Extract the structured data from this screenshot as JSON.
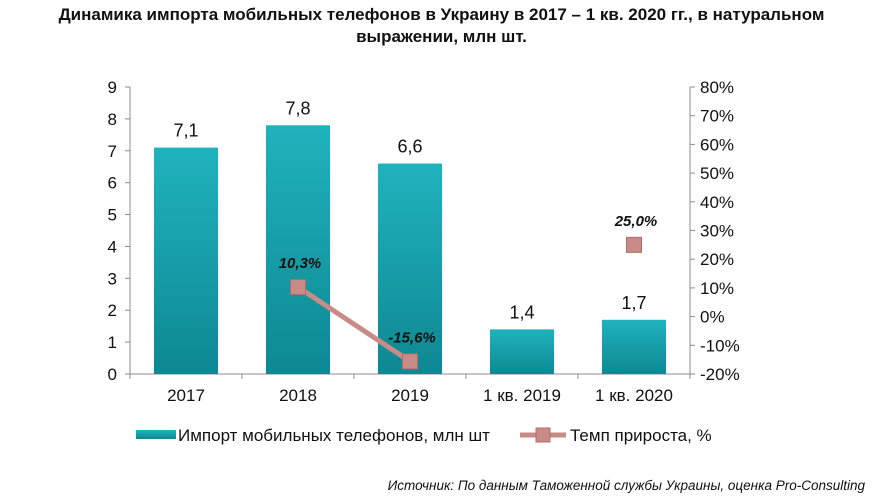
{
  "title_line1": "Динамика импорта мобильных телефонов в Украину в 2017 – 1 кв. 2020 гг., в натуральном",
  "title_line2": "выражении, млн шт.",
  "source": "Источник: По данным Таможенной службы Украины, оценка Pro-Consulting",
  "chart_data": {
    "type": "bar",
    "categories": [
      "2017",
      "2018",
      "2019",
      "1 кв. 2019",
      "1 кв. 2020"
    ],
    "series": [
      {
        "name": "Импорт мобильных телефонов, млн шт",
        "type": "bar",
        "axis": "left",
        "values": [
          7.1,
          7.8,
          6.6,
          1.4,
          1.7
        ],
        "labels": [
          "7,1",
          "7,8",
          "6,6",
          "1,4",
          "1,7"
        ],
        "color": "#17a2ad"
      },
      {
        "name": "Темп прироста, %",
        "type": "line",
        "axis": "right",
        "values": [
          null,
          10.3,
          -15.6,
          null,
          25.0
        ],
        "labels": [
          "",
          "10,3%",
          "-15,6%",
          "",
          "25,0%"
        ],
        "connected": [
          [
            1,
            2
          ]
        ],
        "color": "#c98b87"
      }
    ],
    "y_left": {
      "ylim": [
        0,
        9
      ],
      "ticks": [
        0,
        1,
        2,
        3,
        4,
        5,
        6,
        7,
        8,
        9
      ],
      "tick_labels": [
        "0",
        "1",
        "2",
        "3",
        "4",
        "5",
        "6",
        "7",
        "8",
        "9"
      ]
    },
    "y_right": {
      "ylim": [
        -20,
        80
      ],
      "ticks": [
        -20,
        -10,
        0,
        10,
        20,
        30,
        40,
        50,
        60,
        70,
        80
      ],
      "tick_labels": [
        "-20%",
        "-10%",
        "0%",
        "10%",
        "20%",
        "30%",
        "40%",
        "50%",
        "60%",
        "70%",
        "80%"
      ]
    },
    "grid": false,
    "legend": "bottom"
  }
}
